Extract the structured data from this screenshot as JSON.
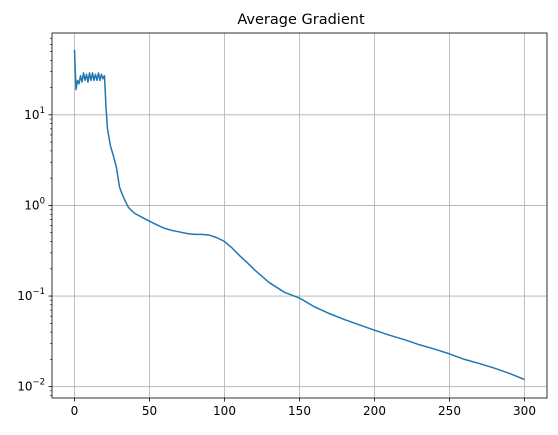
{
  "chart_data": {
    "type": "line",
    "title": "Average Gradient",
    "xlabel": "",
    "ylabel": "",
    "xlim": [
      -15,
      315
    ],
    "ylim": [
      0.0075,
      80
    ],
    "yscale": "log",
    "grid": true,
    "xticks": [
      0,
      50,
      100,
      150,
      200,
      250,
      300
    ],
    "yticks": [
      {
        "value": 0.01,
        "base": "10",
        "exp": "−2"
      },
      {
        "value": 0.1,
        "base": "10",
        "exp": "−1"
      },
      {
        "value": 1,
        "base": "10",
        "exp": "0"
      },
      {
        "value": 10,
        "base": "10",
        "exp": "1"
      }
    ],
    "series": [
      {
        "color": "#1f77b4",
        "x": [
          0,
          1,
          2,
          3,
          4,
          5,
          6,
          7,
          8,
          9,
          10,
          11,
          12,
          13,
          14,
          15,
          16,
          17,
          18,
          19,
          20,
          21,
          22,
          24,
          26,
          28,
          30,
          32,
          34,
          36,
          38,
          40,
          45,
          50,
          55,
          60,
          65,
          70,
          75,
          80,
          85,
          90,
          95,
          100,
          105,
          110,
          115,
          120,
          130,
          140,
          150,
          160,
          170,
          180,
          190,
          200,
          210,
          220,
          230,
          240,
          250,
          260,
          270,
          280,
          290,
          300
        ],
        "y": [
          52,
          19,
          24,
          22,
          27,
          23,
          29,
          24,
          28,
          23,
          29,
          24,
          29,
          24,
          28,
          24,
          29,
          24,
          28,
          25,
          27,
          12,
          7,
          4.5,
          3.5,
          2.6,
          1.6,
          1.3,
          1.1,
          0.95,
          0.88,
          0.82,
          0.74,
          0.67,
          0.61,
          0.56,
          0.53,
          0.51,
          0.49,
          0.48,
          0.48,
          0.47,
          0.44,
          0.4,
          0.34,
          0.28,
          0.235,
          0.195,
          0.14,
          0.11,
          0.095,
          0.076,
          0.064,
          0.055,
          0.048,
          0.042,
          0.037,
          0.033,
          0.029,
          0.026,
          0.023,
          0.02,
          0.018,
          0.016,
          0.014,
          0.012
        ]
      }
    ]
  }
}
